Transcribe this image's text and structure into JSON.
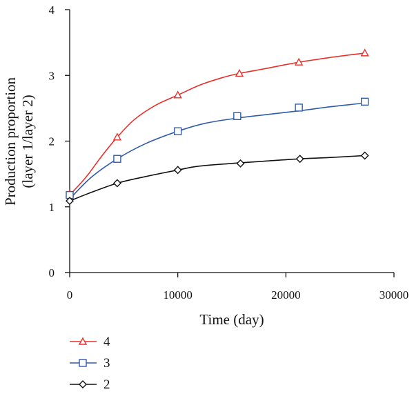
{
  "chart_data": {
    "type": "line",
    "xlabel": "Time (day)",
    "ylabel_lines": [
      "Production proportion",
      "(layer 1/layer 2)"
    ],
    "xlim": [
      0,
      30000
    ],
    "ylim": [
      0,
      4
    ],
    "x_ticks": [
      0,
      10000,
      20000,
      30000
    ],
    "y_ticks": [
      0,
      1,
      2,
      3,
      4
    ],
    "x_tick_labels": [
      "0",
      "10000",
      "20000",
      "30000"
    ],
    "y_tick_labels": [
      "0",
      "1",
      "2",
      "3",
      "4"
    ],
    "grid": false,
    "legend_position": "bottom-left, below plot",
    "series": [
      {
        "name": "4",
        "color": "#e8302a",
        "marker": "triangle",
        "x": [
          0,
          4400,
          10000,
          15700,
          21200,
          27300
        ],
        "values": [
          1.2,
          2.06,
          2.7,
          3.03,
          3.2,
          3.34
        ],
        "curve_x": [
          0,
          1500,
          3000,
          4400,
          6000,
          8000,
          10000,
          12000,
          14000,
          15700,
          18000,
          21200,
          24000,
          27300
        ],
        "curve_y": [
          1.18,
          1.45,
          1.78,
          2.06,
          2.33,
          2.55,
          2.7,
          2.85,
          2.96,
          3.03,
          3.1,
          3.2,
          3.27,
          3.34
        ]
      },
      {
        "name": "3",
        "color": "#2e5aa8",
        "marker": "square",
        "x": [
          0,
          4400,
          10000,
          15500,
          21200,
          27300
        ],
        "values": [
          1.18,
          1.73,
          2.15,
          2.38,
          2.51,
          2.6
        ],
        "curve_x": [
          0,
          2000,
          4400,
          7000,
          10000,
          12500,
          15500,
          18000,
          21200,
          24000,
          27300
        ],
        "curve_y": [
          1.12,
          1.45,
          1.73,
          1.96,
          2.15,
          2.27,
          2.35,
          2.4,
          2.46,
          2.52,
          2.58
        ]
      },
      {
        "name": "2",
        "color": "#111111",
        "marker": "diamond",
        "x": [
          0,
          4400,
          10000,
          15800,
          21300,
          27300
        ],
        "values": [
          1.09,
          1.36,
          1.56,
          1.66,
          1.73,
          1.78
        ],
        "curve_x": [
          0,
          2000,
          4400,
          7000,
          10000,
          12000,
          15800,
          18500,
          21300,
          24000,
          27300
        ],
        "curve_y": [
          1.09,
          1.22,
          1.36,
          1.46,
          1.56,
          1.62,
          1.67,
          1.7,
          1.73,
          1.75,
          1.78
        ]
      }
    ]
  }
}
